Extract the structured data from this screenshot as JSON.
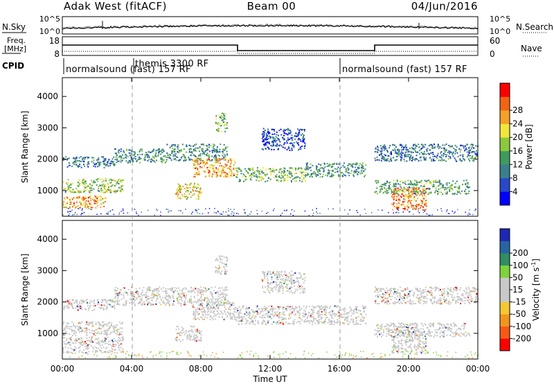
{
  "header": {
    "station": "Adak West (fitACF)",
    "beam": "Beam 00",
    "date": "04/Jun/2016"
  },
  "top_panels": {
    "nsky_label": "N.Sky",
    "nsearch_label": "N.Search",
    "freq_label_1": "Freq.",
    "freq_label_2": "[MHz]",
    "nave_label": "Nave",
    "cpid_label": "CPID",
    "noise_ticks": [
      "10^5",
      "10^0"
    ],
    "freq_ticks": [
      "18",
      "8"
    ],
    "nave_ticks": [
      "60",
      "0"
    ]
  },
  "cpid_segments": [
    {
      "label": "normalsound (fast) 157 RF"
    },
    {
      "label": "themis 3300 RF"
    },
    {
      "label": "normalsound (fast) 157 RF"
    }
  ],
  "power_colorbar": {
    "title": "Power [dB]",
    "ticks": [
      "4",
      "8",
      "12",
      "16",
      "20",
      "24",
      "28"
    ],
    "colors": [
      "#0000ff",
      "#2848c8",
      "#3a7f8c",
      "#3f9a5e",
      "#8cc83c",
      "#f0e63c",
      "#f5a028",
      "#f06414",
      "#ff0000"
    ]
  },
  "velocity_colorbar": {
    "title": "Velocity [m s",
    "title_sup": "-1",
    "title_end": "]",
    "ticks": [
      "-200",
      "-100",
      "-50",
      "-15",
      "15",
      "50",
      "100",
      "200"
    ],
    "colors": [
      "#ff0000",
      "#f55a14",
      "#f0961e",
      "#f5c832",
      "#c8c8c8",
      "#c8c8c8",
      "#7fd23c",
      "#328c64",
      "#2864a0",
      "#1e28b4"
    ]
  },
  "axes": {
    "ylabel": "Slant Range [km]",
    "yticks": [
      "1000",
      "2000",
      "3000",
      "4000"
    ],
    "xlabel": "Time UT",
    "xticks": [
      "00:00",
      "04:00",
      "08:00",
      "12:00",
      "16:00",
      "20:00",
      "00:00"
    ]
  },
  "chart_data": [
    {
      "type": "heatmap",
      "title": "",
      "xlabel": "",
      "ylabel": "Slant Range [km]",
      "xlim": [
        0,
        24
      ],
      "ylim": [
        180,
        4600
      ],
      "colorbar": "Power [dB]",
      "regions": [
        {
          "t0": 0.0,
          "t1": 3.0,
          "r0": 1750,
          "r1": 2100,
          "level": 10
        },
        {
          "t0": 3.0,
          "t1": 6.0,
          "r0": 1900,
          "r1": 2350,
          "level": 12
        },
        {
          "t0": 6.0,
          "t1": 9.5,
          "r0": 1950,
          "r1": 2500,
          "level": 12
        },
        {
          "t0": 7.5,
          "t1": 10.0,
          "r0": 1450,
          "r1": 2050,
          "level": 26
        },
        {
          "t0": 0.0,
          "t1": 3.5,
          "r0": 950,
          "r1": 1400,
          "level": 18
        },
        {
          "t0": 0.0,
          "t1": 2.5,
          "r0": 450,
          "r1": 850,
          "level": 26
        },
        {
          "t0": 6.5,
          "t1": 8.0,
          "r0": 750,
          "r1": 1250,
          "level": 22
        },
        {
          "t0": 8.8,
          "t1": 9.5,
          "r0": 2900,
          "r1": 3500,
          "level": 16
        },
        {
          "t0": 10.0,
          "t1": 14.0,
          "r0": 1300,
          "r1": 1750,
          "level": 16
        },
        {
          "t0": 14.0,
          "t1": 17.5,
          "r0": 1450,
          "r1": 1900,
          "level": 12
        },
        {
          "t0": 11.5,
          "t1": 14.0,
          "r0": 2300,
          "r1": 3000,
          "level": 6
        },
        {
          "t0": 18.0,
          "t1": 24.0,
          "r0": 1950,
          "r1": 2500,
          "level": 10
        },
        {
          "t0": 18.0,
          "t1": 23.5,
          "r0": 900,
          "r1": 1350,
          "level": 14
        },
        {
          "t0": 19.0,
          "t1": 21.0,
          "r0": 400,
          "r1": 1100,
          "level": 28
        }
      ]
    },
    {
      "type": "heatmap",
      "title": "",
      "xlabel": "Time UT",
      "ylabel": "Slant Range [km]",
      "xlim": [
        0,
        24
      ],
      "ylim": [
        180,
        4600
      ],
      "colorbar": "Velocity [m s-1]",
      "regions": [
        {
          "t0": 0.0,
          "t1": 3.0,
          "r0": 1750,
          "r1": 2100,
          "level": 0
        },
        {
          "t0": 3.0,
          "t1": 9.5,
          "r0": 1900,
          "r1": 2500,
          "level": 0
        },
        {
          "t0": 7.5,
          "t1": 10.0,
          "r0": 1450,
          "r1": 2050,
          "level": 0
        },
        {
          "t0": 0.0,
          "t1": 3.5,
          "r0": 950,
          "r1": 1400,
          "level": 0
        },
        {
          "t0": 0.0,
          "t1": 3.5,
          "r0": 400,
          "r1": 900,
          "level": 0
        },
        {
          "t0": 6.5,
          "t1": 8.0,
          "r0": 750,
          "r1": 1250,
          "level": 0
        },
        {
          "t0": 8.8,
          "t1": 9.5,
          "r0": 2900,
          "r1": 3500,
          "level": 0
        },
        {
          "t0": 10.0,
          "t1": 17.5,
          "r0": 1300,
          "r1": 1900,
          "level": 0
        },
        {
          "t0": 11.5,
          "t1": 14.0,
          "r0": 2300,
          "r1": 3000,
          "level": 0
        },
        {
          "t0": 18.0,
          "t1": 24.0,
          "r0": 1950,
          "r1": 2500,
          "level": 0
        },
        {
          "t0": 18.0,
          "t1": 23.5,
          "r0": 900,
          "r1": 1350,
          "level": 0
        },
        {
          "t0": 19.0,
          "t1": 21.0,
          "r0": 400,
          "r1": 1100,
          "level": 0
        }
      ]
    }
  ]
}
